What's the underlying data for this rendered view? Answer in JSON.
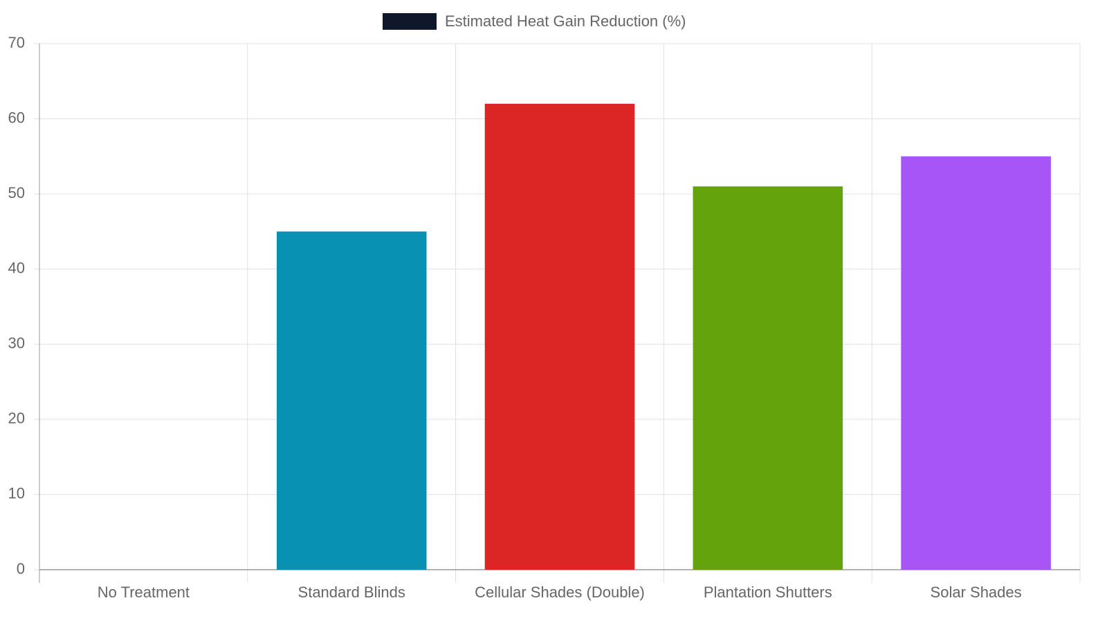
{
  "chart_data": {
    "type": "bar",
    "categories": [
      "No Treatment",
      "Standard Blinds",
      "Cellular Shades (Double)",
      "Plantation Shutters",
      "Solar Shades"
    ],
    "series": [
      {
        "name": "Estimated Heat Gain Reduction (%)",
        "color": "#0f172a",
        "colors": [
          "#0f172a",
          "#0891b2",
          "#dc2626",
          "#65a30d",
          "#a855f7"
        ],
        "values": [
          0,
          45,
          62,
          51,
          55
        ]
      }
    ],
    "ylim": [
      0,
      70
    ],
    "yticks": [
      0,
      10,
      20,
      30,
      40,
      50,
      60,
      70
    ],
    "grid": true,
    "legend": "top"
  }
}
